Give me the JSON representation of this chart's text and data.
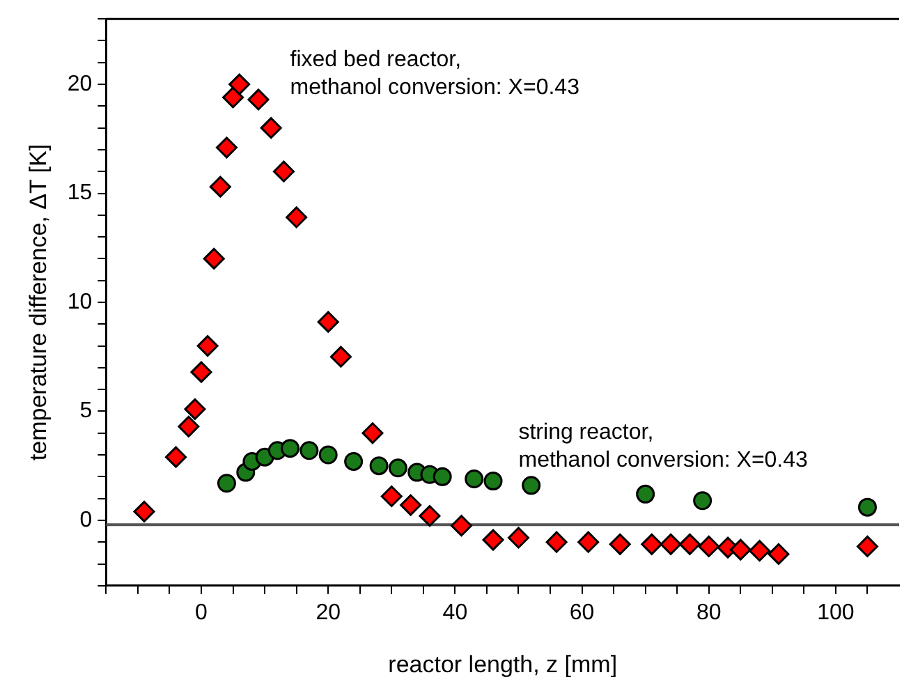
{
  "chart_data": {
    "type": "scatter",
    "xlabel": "reactor length, z [mm]",
    "ylabel": "temperature difference, ΔT [K]",
    "xlim": [
      -15,
      110
    ],
    "ylim": [
      -3,
      23
    ],
    "xticks": [
      {
        "value": -15,
        "label": null
      },
      {
        "value": -10,
        "label": null
      },
      {
        "value": -5,
        "label": null
      },
      0,
      {
        "value": 5,
        "label": null
      },
      {
        "value": 10,
        "label": null
      },
      {
        "value": 15,
        "label": null
      },
      20,
      {
        "value": 25,
        "label": null
      },
      {
        "value": 30,
        "label": null
      },
      {
        "value": 35,
        "label": null
      },
      40,
      {
        "value": 45,
        "label": null
      },
      {
        "value": 50,
        "label": null
      },
      {
        "value": 55,
        "label": null
      },
      60,
      {
        "value": 65,
        "label": null
      },
      {
        "value": 70,
        "label": null
      },
      {
        "value": 75,
        "label": null
      },
      80,
      {
        "value": 85,
        "label": null
      },
      {
        "value": 90,
        "label": null
      },
      {
        "value": 95,
        "label": null
      },
      100,
      {
        "value": 105,
        "label": null
      }
    ],
    "yticks": [
      {
        "value": -3,
        "label": null
      },
      {
        "value": -2,
        "label": null
      },
      {
        "value": -1,
        "label": null
      },
      0,
      {
        "value": 1,
        "label": null
      },
      {
        "value": 2,
        "label": null
      },
      {
        "value": 3,
        "label": null
      },
      {
        "value": 4,
        "label": null
      },
      5,
      {
        "value": 6,
        "label": null
      },
      {
        "value": 7,
        "label": null
      },
      {
        "value": 8,
        "label": null
      },
      {
        "value": 9,
        "label": null
      },
      10,
      {
        "value": 11,
        "label": null
      },
      {
        "value": 12,
        "label": null
      },
      {
        "value": 13,
        "label": null
      },
      {
        "value": 14,
        "label": null
      },
      15,
      {
        "value": 16,
        "label": null
      },
      {
        "value": 17,
        "label": null
      },
      {
        "value": 18,
        "label": null
      },
      {
        "value": 19,
        "label": null
      },
      20,
      {
        "value": 21,
        "label": null
      },
      {
        "value": 22,
        "label": null
      },
      {
        "value": 23,
        "label": null
      }
    ],
    "grid": false,
    "legend": false,
    "series": [
      {
        "color": "#ff0000",
        "marker": "diamond",
        "x": [
          -9,
          -4,
          -2,
          -1,
          0,
          1,
          2,
          3,
          4,
          5,
          6,
          9,
          11,
          13,
          15,
          20,
          22,
          27,
          30,
          33,
          36,
          41,
          46,
          50,
          56,
          61,
          66,
          71,
          74,
          77,
          80,
          83,
          85,
          88,
          91,
          105
        ],
        "values": [
          0.4,
          2.9,
          4.3,
          5.1,
          6.8,
          8.0,
          12.0,
          15.3,
          17.1,
          19.4,
          20.0,
          19.3,
          18.0,
          16.0,
          13.9,
          9.1,
          7.5,
          4.0,
          1.1,
          0.7,
          0.2,
          -0.25,
          -0.9,
          -0.8,
          -1.0,
          -1.0,
          -1.1,
          -1.1,
          -1.1,
          -1.1,
          -1.2,
          -1.25,
          -1.35,
          -1.4,
          -1.55,
          -1.2
        ]
      },
      {
        "color": "#1a7a1a",
        "marker": "circle",
        "x": [
          4,
          7,
          8,
          10,
          12,
          14,
          17,
          20,
          24,
          28,
          31,
          34,
          36,
          38,
          43,
          46,
          52,
          70,
          79,
          105
        ],
        "values": [
          1.7,
          2.2,
          2.7,
          2.9,
          3.2,
          3.3,
          3.2,
          3.0,
          2.7,
          2.5,
          2.4,
          2.2,
          2.1,
          2.0,
          1.9,
          1.8,
          1.6,
          1.2,
          0.9,
          0.6
        ]
      }
    ],
    "ref_lines": [
      {
        "axis": "y",
        "value": -0.2,
        "color": "#555555"
      }
    ],
    "annotations": [
      "fixed bed reactor,\nmethanol conversion: X=0.43",
      "string reactor,\nmethanol conversion: X=0.43"
    ]
  }
}
